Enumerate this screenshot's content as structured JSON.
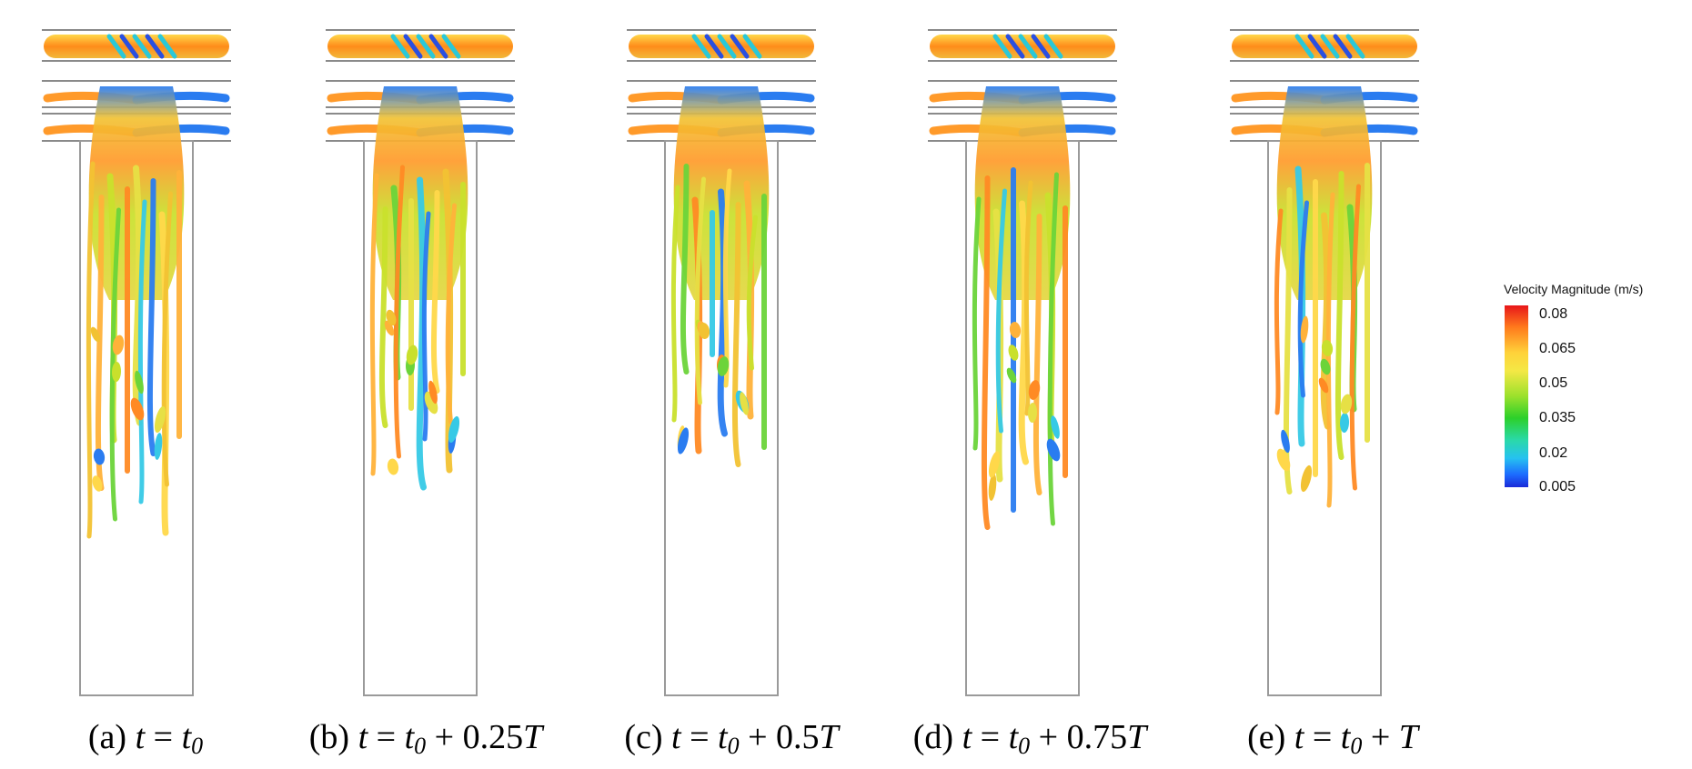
{
  "panels": [
    {
      "id": "a",
      "label_prefix": "(a) ",
      "t": "t",
      "eq": " = ",
      "t0": "t",
      "t0_sub": "0",
      "offset": "",
      "T": ""
    },
    {
      "id": "b",
      "label_prefix": "(b) ",
      "t": "t",
      "eq": " = ",
      "t0": "t",
      "t0_sub": "0",
      "offset": " + 0.25",
      "T": "T"
    },
    {
      "id": "c",
      "label_prefix": "(c) ",
      "t": "t",
      "eq": " = ",
      "t0": "t",
      "t0_sub": "0",
      "offset": " + 0.5",
      "T": "T"
    },
    {
      "id": "d",
      "label_prefix": "(d) ",
      "t": "t",
      "eq": " = ",
      "t0": "t",
      "t0_sub": "0",
      "offset": " + 0.75",
      "T": "T"
    },
    {
      "id": "e",
      "label_prefix": "(e) ",
      "t": "t",
      "eq": " = ",
      "t0": "t",
      "t0_sub": "0",
      "offset": " + ",
      "T": "T"
    }
  ],
  "colorbar": {
    "title": "Velocity Magnitude (m/s)",
    "ticks": [
      "0.08",
      "0.065",
      "0.05",
      "0.035",
      "0.02",
      "0.005"
    ],
    "colors": {
      "max": "#e8161a",
      "mid": "#2cd02a",
      "min": "#1a2bd8"
    }
  }
}
